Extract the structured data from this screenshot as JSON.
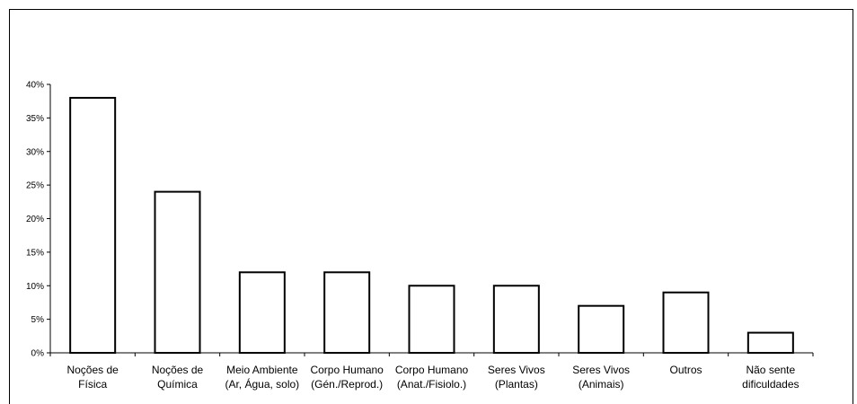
{
  "chart_data": {
    "type": "bar",
    "title": "",
    "xlabel": "",
    "ylabel": "",
    "categories": [
      [
        "Noções de",
        "Física"
      ],
      [
        "Noções de",
        "Química"
      ],
      [
        "Meio Ambiente",
        "(Ar, Água, solo)"
      ],
      [
        "Corpo Humano",
        "(Gén./Reprod.)"
      ],
      [
        "Corpo Humano",
        "(Anat./Fisiolo.)"
      ],
      [
        "Seres Vivos",
        "(Plantas)"
      ],
      [
        "Seres Vivos",
        "(Animais)"
      ],
      [
        "Outros"
      ],
      [
        "Não sente",
        "dificuldades"
      ]
    ],
    "values": [
      38,
      24,
      12,
      12,
      10,
      10,
      7,
      9,
      3
    ],
    "ylim": [
      0,
      40
    ],
    "yticks": [
      "0%",
      "5%",
      "10%",
      "15%",
      "20%",
      "25%",
      "30%",
      "35%",
      "40%"
    ],
    "grid": false,
    "bar_color": "#ffffff",
    "bar_edge_color": "#000000"
  }
}
